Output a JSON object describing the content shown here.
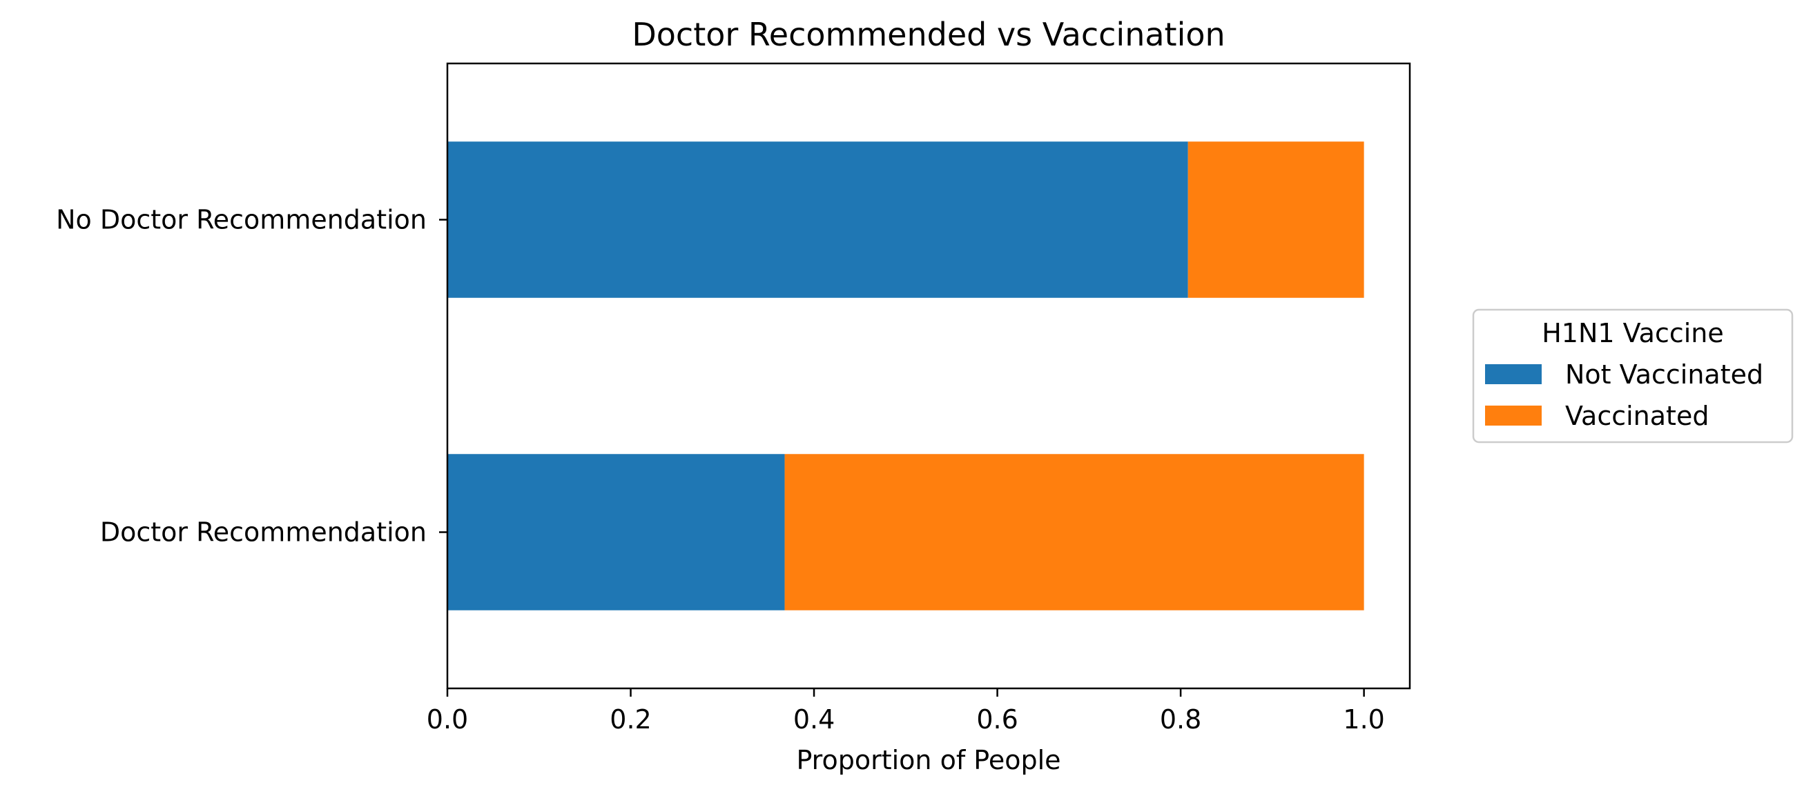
{
  "chart_data": {
    "type": "bar",
    "orientation": "horizontal",
    "stacked": true,
    "title": "Doctor Recommended vs Vaccination",
    "xlabel": "Proportion of People",
    "ylabel": "",
    "categories": [
      "No Doctor Recommendation",
      "Doctor Recommendation"
    ],
    "series": [
      {
        "name": "Not Vaccinated",
        "values": [
          0.808,
          0.368
        ],
        "color": "#1f77b4"
      },
      {
        "name": "Vaccinated",
        "values": [
          0.192,
          0.632
        ],
        "color": "#ff7f0e"
      }
    ],
    "xlim": [
      0,
      1.05
    ],
    "xticks": [
      0.0,
      0.2,
      0.4,
      0.6,
      0.8,
      1.0
    ],
    "xtick_labels": [
      "0.0",
      "0.2",
      "0.4",
      "0.6",
      "0.8",
      "1.0"
    ],
    "grid": false,
    "legend": {
      "title": "H1N1 Vaccine",
      "placement": "right"
    }
  }
}
